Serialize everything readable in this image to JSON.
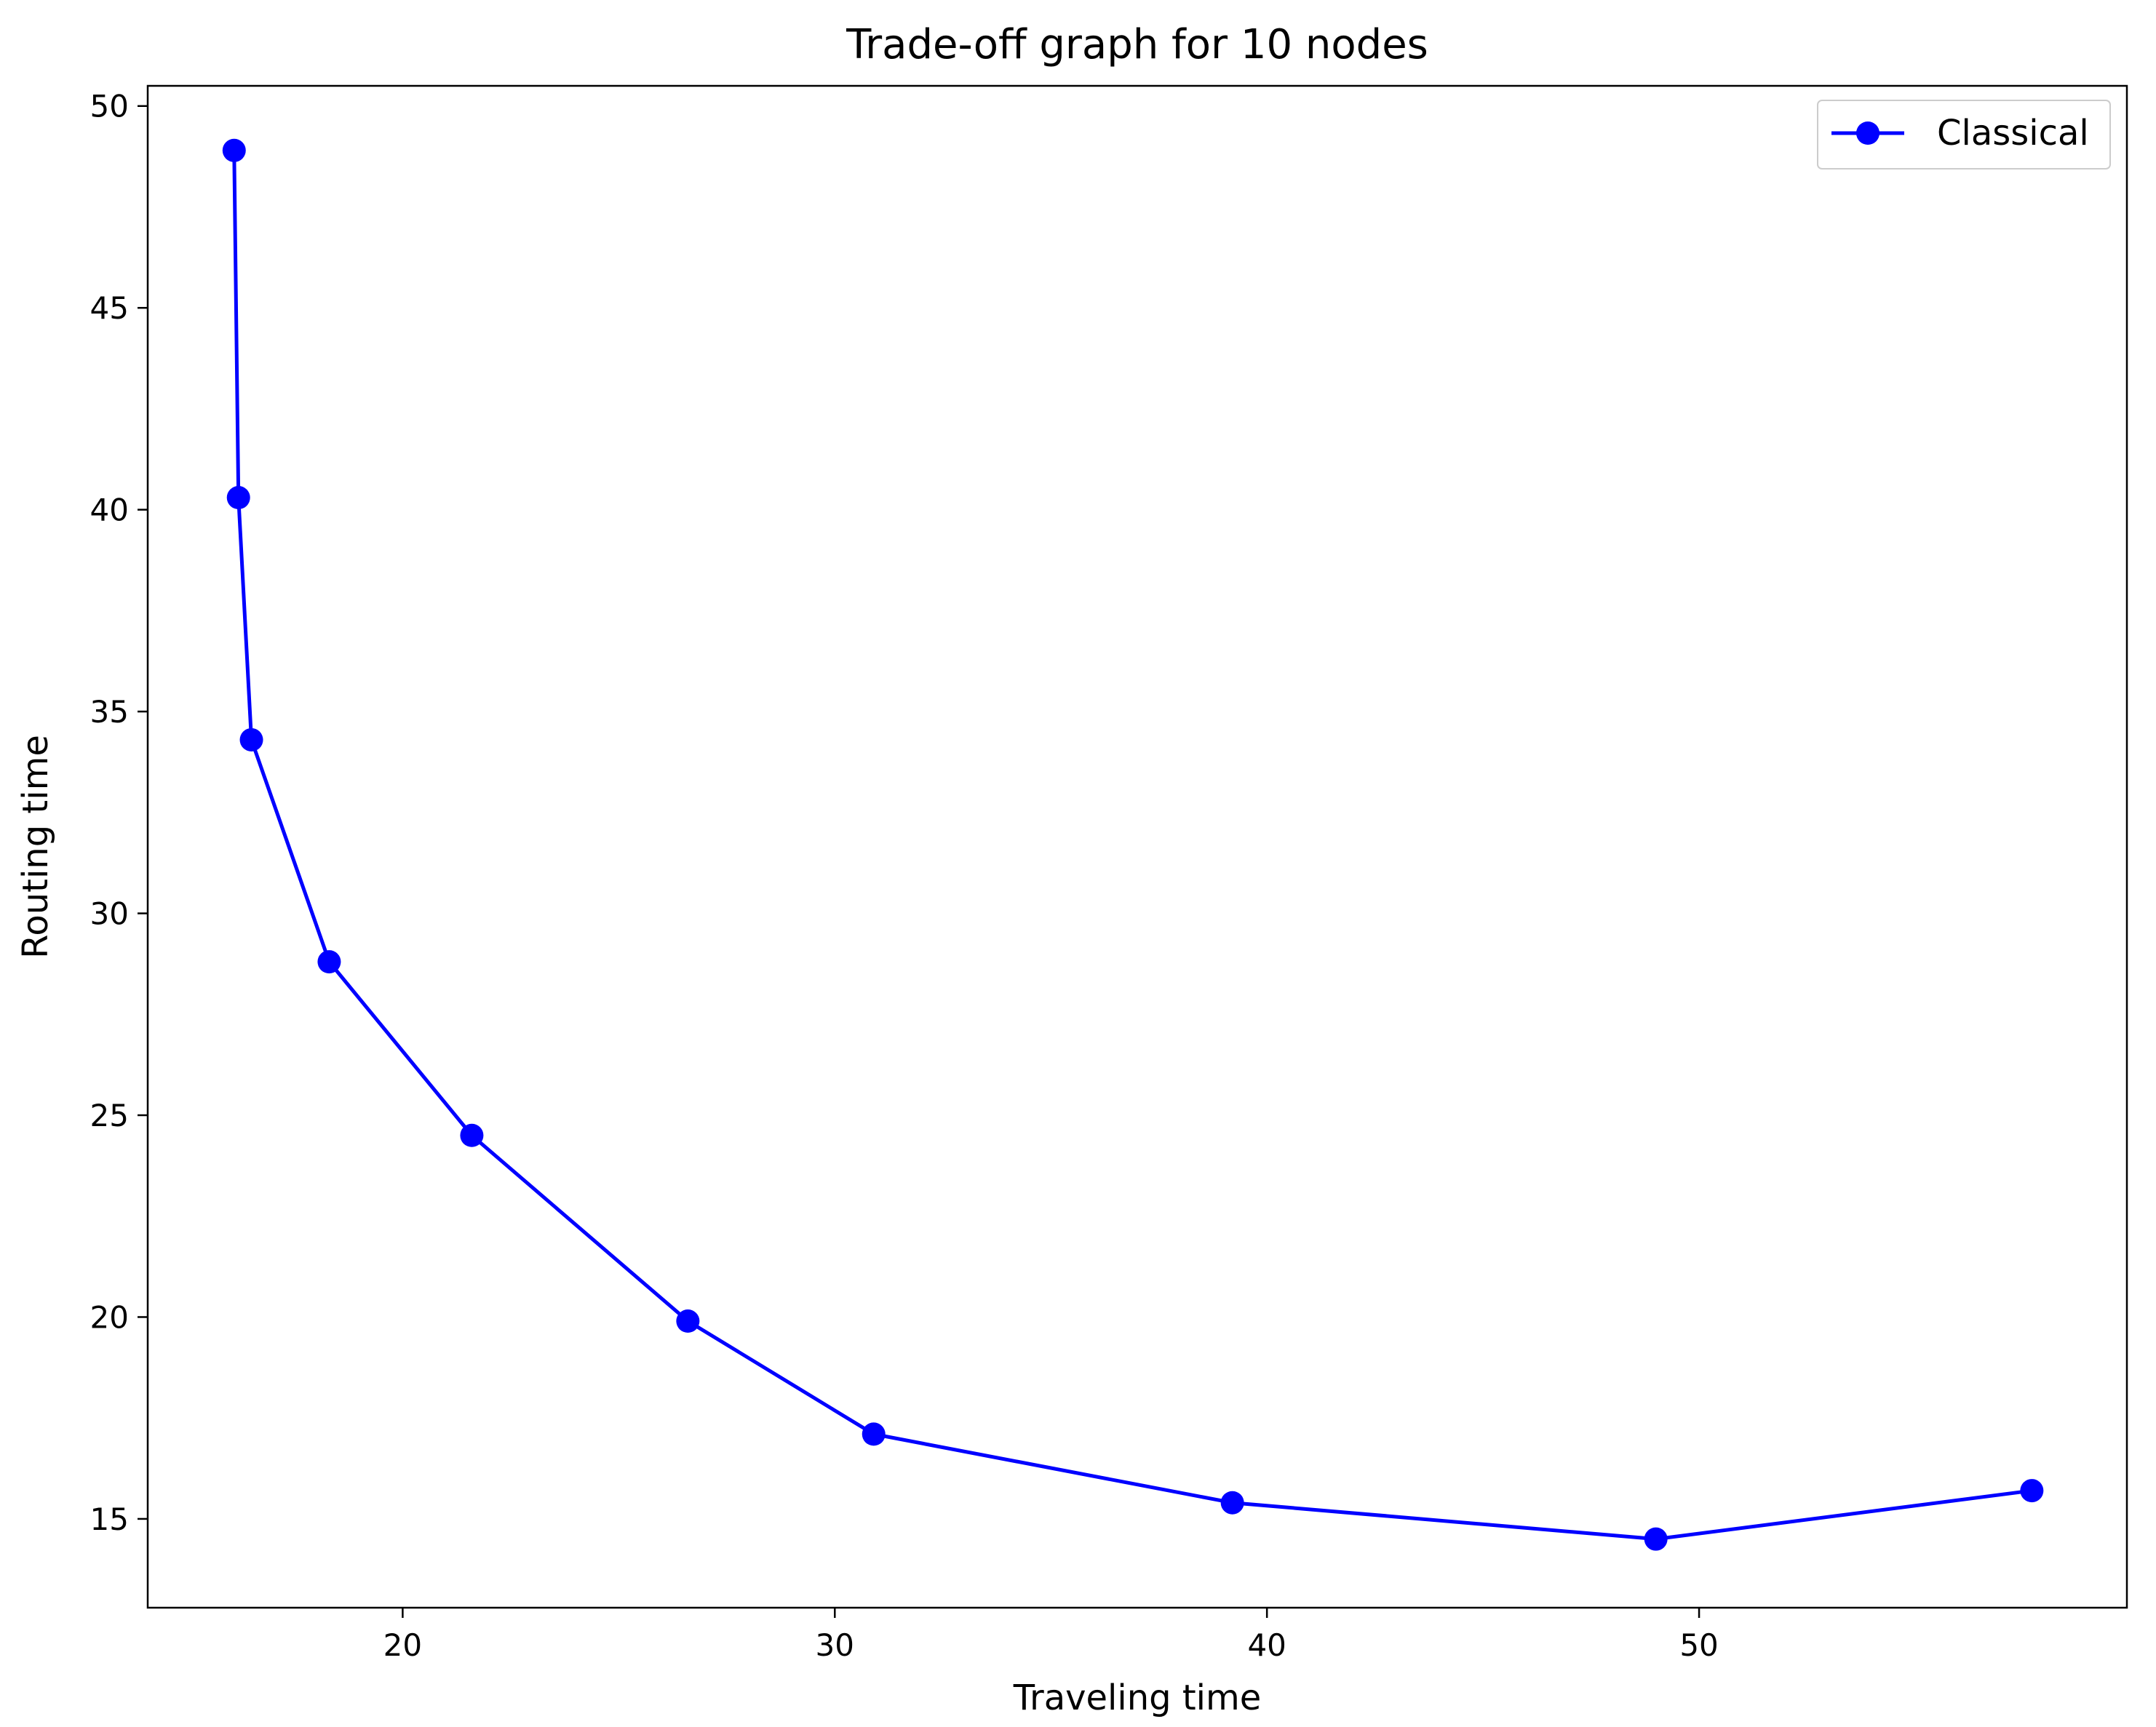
{
  "chart_data": {
    "type": "line",
    "title": "Trade-off graph for 10 nodes",
    "xlabel": "Traveling time",
    "ylabel": "Routing time",
    "xlim": [
      14.1,
      59.9
    ],
    "ylim": [
      12.8,
      50.5
    ],
    "xticks": [
      20,
      30,
      40,
      50
    ],
    "yticks": [
      15,
      20,
      25,
      30,
      35,
      40,
      45,
      50
    ],
    "grid": false,
    "legend_position": "top-right",
    "series": [
      {
        "name": "Classical",
        "color": "#0000ff",
        "marker": "circle",
        "x": [
          16.1,
          16.2,
          16.5,
          18.3,
          21.6,
          26.6,
          30.9,
          39.2,
          49.0,
          57.7
        ],
        "y": [
          48.9,
          40.3,
          34.3,
          28.8,
          24.5,
          19.9,
          17.1,
          15.4,
          14.5,
          15.7
        ]
      }
    ]
  }
}
